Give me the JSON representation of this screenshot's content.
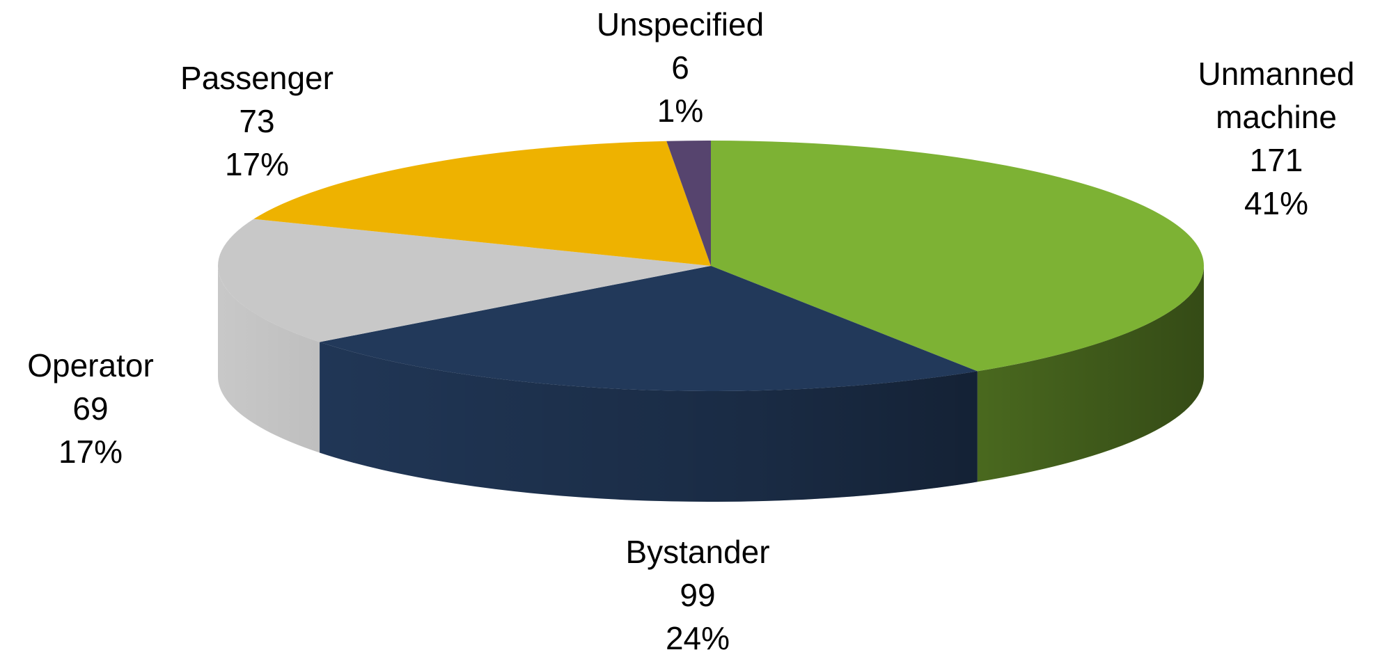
{
  "chart_data": {
    "type": "pie",
    "categories": [
      "Unmanned machine",
      "Bystander",
      "Operator",
      "Passenger",
      "Unspecified"
    ],
    "values": [
      171,
      99,
      69,
      73,
      6
    ],
    "percent_labels": [
      "41%",
      "24%",
      "17%",
      "17%",
      "1%"
    ],
    "colors": [
      "#7db234",
      "#22395a",
      "#c8c8c8",
      "#eeb200",
      "#56446e"
    ],
    "three_d": true
  }
}
